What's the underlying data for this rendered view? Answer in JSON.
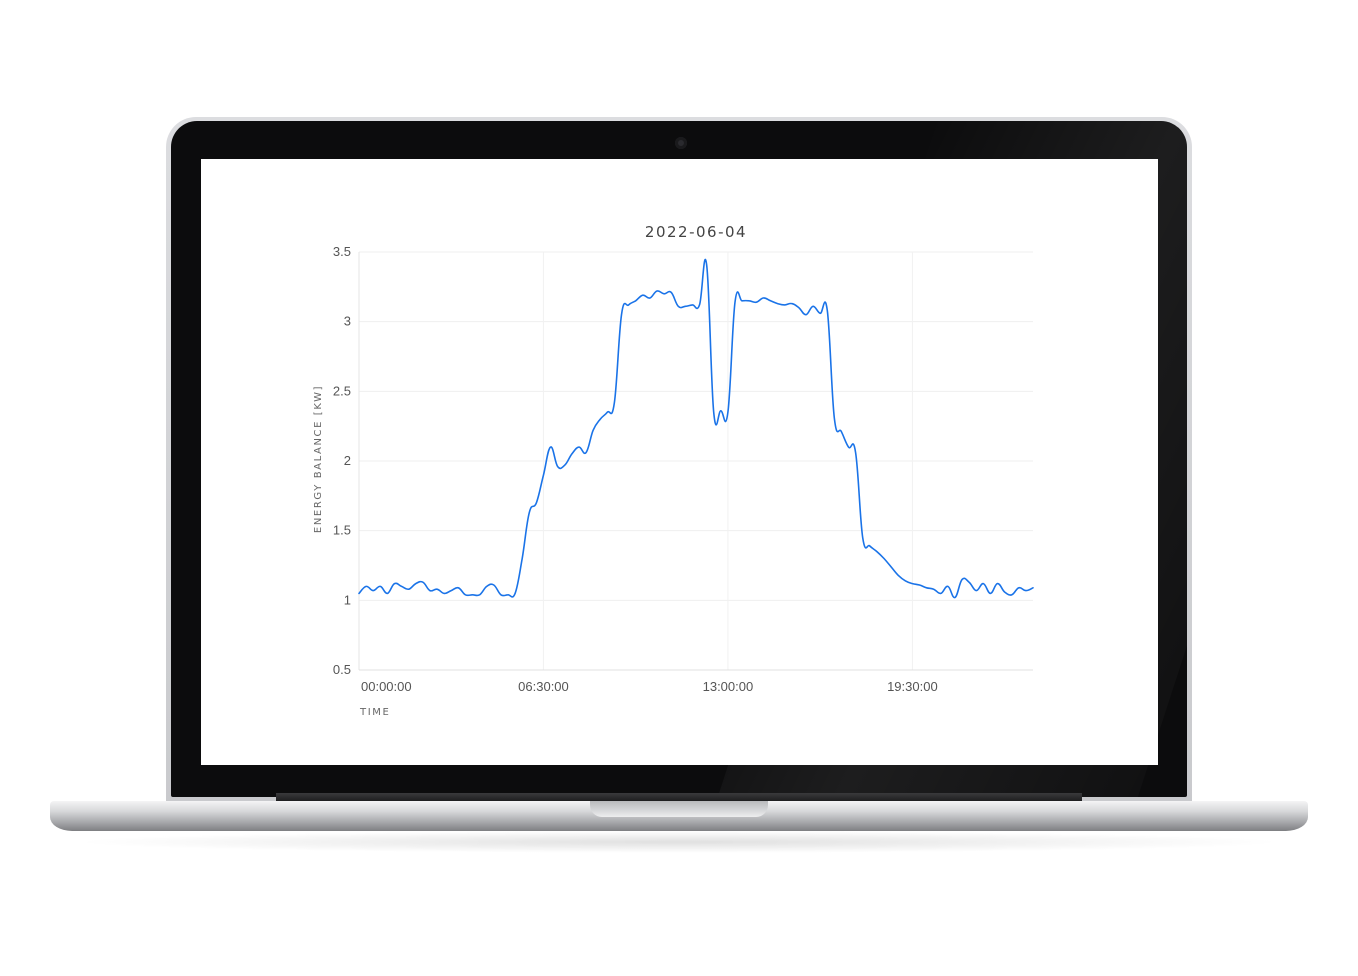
{
  "chart_data": {
    "type": "line",
    "title": "2022-06-04",
    "xlabel": "TIME",
    "ylabel": "ENERGY BALANCE [KW]",
    "x_tick_labels": [
      "00:00:00",
      "06:30:00",
      "13:00:00",
      "19:30:00"
    ],
    "x_ticks_hours": [
      0,
      6.5,
      13,
      19.5
    ],
    "xlim_hours": [
      0,
      23.75
    ],
    "y_ticks": [
      0.5,
      1,
      1.5,
      2,
      2.5,
      3,
      3.5
    ],
    "y_tick_labels": [
      "0.5",
      "1",
      "1.5",
      "2",
      "2.5",
      "3",
      "3.5"
    ],
    "ylim": [
      0.5,
      3.5
    ],
    "grid": true,
    "line_color": "#1a73e8",
    "series": [
      {
        "x_hours": [
          0.0,
          0.25,
          0.5,
          0.75,
          1.0,
          1.25,
          1.5,
          1.75,
          2.0,
          2.25,
          2.5,
          2.75,
          3.0,
          3.25,
          3.5,
          3.75,
          4.0,
          4.25,
          4.5,
          4.75,
          5.0,
          5.25,
          5.5,
          5.75,
          6.0,
          6.25,
          6.5,
          6.75,
          7.0,
          7.25,
          7.5,
          7.75,
          8.0,
          8.25,
          8.5,
          8.75,
          9.0,
          9.25,
          9.5,
          9.75,
          10.0,
          10.25,
          10.5,
          10.75,
          11.0,
          11.25,
          11.5,
          11.75,
          12.0,
          12.25,
          12.5,
          12.75,
          13.0,
          13.25,
          13.5,
          13.75,
          14.0,
          14.25,
          14.5,
          14.75,
          15.0,
          15.25,
          15.5,
          15.75,
          16.0,
          16.25,
          16.5,
          16.75,
          17.0,
          17.25,
          17.5,
          17.75,
          18.0,
          18.25,
          18.5,
          18.75,
          19.0,
          19.25,
          19.5,
          19.75,
          20.0,
          20.25,
          20.5,
          20.75,
          21.0,
          21.25,
          21.5,
          21.75,
          22.0,
          22.25,
          22.5,
          22.75,
          23.0,
          23.25,
          23.5,
          23.75
        ],
        "values": [
          1.05,
          1.1,
          1.07,
          1.1,
          1.05,
          1.12,
          1.1,
          1.08,
          1.12,
          1.13,
          1.07,
          1.08,
          1.05,
          1.07,
          1.09,
          1.04,
          1.04,
          1.04,
          1.1,
          1.11,
          1.04,
          1.04,
          1.05,
          1.3,
          1.63,
          1.7,
          1.9,
          2.1,
          1.96,
          1.97,
          2.05,
          2.1,
          2.06,
          2.22,
          2.3,
          2.35,
          2.42,
          3.05,
          3.12,
          3.15,
          3.19,
          3.17,
          3.22,
          3.2,
          3.21,
          3.11,
          3.11,
          3.12,
          3.12,
          3.41,
          2.35,
          2.36,
          2.35,
          3.14,
          3.15,
          3.15,
          3.14,
          3.17,
          3.15,
          3.13,
          3.12,
          3.13,
          3.1,
          3.05,
          3.11,
          3.06,
          3.08,
          2.31,
          2.21,
          2.1,
          2.06,
          1.45,
          1.39,
          1.35,
          1.3,
          1.24,
          1.18,
          1.14,
          1.12,
          1.11,
          1.09,
          1.08,
          1.05,
          1.1,
          1.02,
          1.15,
          1.13,
          1.07,
          1.12,
          1.05,
          1.12,
          1.06,
          1.04,
          1.09,
          1.07,
          1.09
        ]
      }
    ]
  }
}
